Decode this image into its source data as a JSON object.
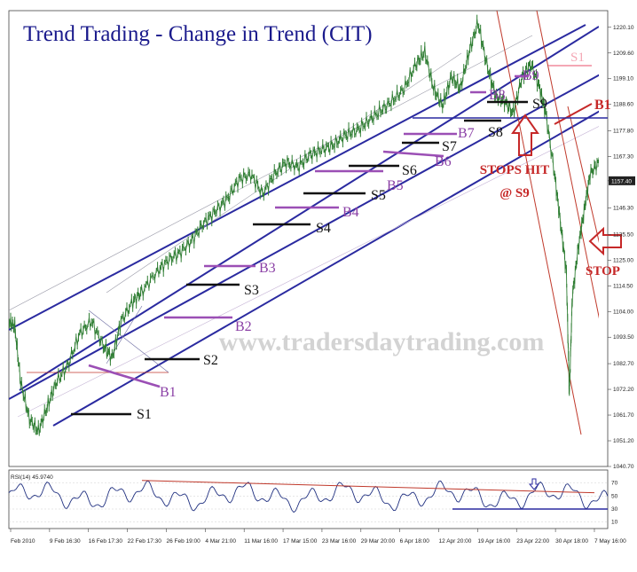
{
  "chart_data": {
    "type": "line",
    "title": "Trend Trading - Change in Trend (CIT)",
    "watermark": "www.tradersdaytrading.com",
    "y_ticks": [
      "1220.10",
      "1209.60",
      "1199.10",
      "1188.60",
      "1177.80",
      "1167.30",
      "1157.40",
      "1146.30",
      "1135.50",
      "1125.00",
      "1114.50",
      "1104.00",
      "1093.50",
      "1082.70",
      "1072.20",
      "1061.70",
      "1051.20",
      "1040.70"
    ],
    "current_price_label": "1157.40",
    "ylim": [
      1040.7,
      1224
    ],
    "x_ticks": [
      "Feb 2010",
      "9 Feb 16:30",
      "16 Feb 17:30",
      "22 Feb 17:30",
      "26 Feb 19:00",
      "4 Mar 21:00",
      "11 Mar 16:00",
      "17 Mar 15:00",
      "23 Mar 16:00",
      "29 Mar 20:00",
      "6 Apr 18:00",
      "12 Apr 20:00",
      "19 Apr 16:00",
      "23 Apr 22:00",
      "30 Apr 18:00",
      "7 May 16:00"
    ],
    "price_path": [
      [
        0,
        1100
      ],
      [
        0.01,
        1098
      ],
      [
        0.02,
        1075
      ],
      [
        0.035,
        1060
      ],
      [
        0.05,
        1055
      ],
      [
        0.065,
        1065
      ],
      [
        0.08,
        1075
      ],
      [
        0.1,
        1082
      ],
      [
        0.12,
        1095
      ],
      [
        0.14,
        1100
      ],
      [
        0.16,
        1090
      ],
      [
        0.175,
        1085
      ],
      [
        0.19,
        1100
      ],
      [
        0.21,
        1108
      ],
      [
        0.225,
        1112
      ],
      [
        0.25,
        1120
      ],
      [
        0.27,
        1125
      ],
      [
        0.29,
        1128
      ],
      [
        0.31,
        1133
      ],
      [
        0.33,
        1140
      ],
      [
        0.35,
        1145
      ],
      [
        0.37,
        1150
      ],
      [
        0.39,
        1158
      ],
      [
        0.41,
        1160
      ],
      [
        0.43,
        1152
      ],
      [
        0.45,
        1160
      ],
      [
        0.47,
        1165
      ],
      [
        0.49,
        1163
      ],
      [
        0.51,
        1168
      ],
      [
        0.53,
        1170
      ],
      [
        0.55,
        1172
      ],
      [
        0.57,
        1176
      ],
      [
        0.59,
        1178
      ],
      [
        0.61,
        1182
      ],
      [
        0.63,
        1186
      ],
      [
        0.65,
        1190
      ],
      [
        0.67,
        1195
      ],
      [
        0.69,
        1205
      ],
      [
        0.705,
        1210
      ],
      [
        0.72,
        1195
      ],
      [
        0.735,
        1188
      ],
      [
        0.75,
        1200
      ],
      [
        0.765,
        1195
      ],
      [
        0.78,
        1210
      ],
      [
        0.795,
        1222
      ],
      [
        0.81,
        1205
      ],
      [
        0.825,
        1192
      ],
      [
        0.84,
        1190
      ],
      [
        0.855,
        1185
      ],
      [
        0.87,
        1200
      ],
      [
        0.885,
        1205
      ],
      [
        0.9,
        1195
      ],
      [
        0.91,
        1185
      ],
      [
        0.925,
        1160
      ],
      [
        0.935,
        1140
      ],
      [
        0.945,
        1120
      ],
      [
        0.95,
        1070
      ],
      [
        0.955,
        1110
      ],
      [
        0.965,
        1130
      ],
      [
        0.975,
        1145
      ],
      [
        0.985,
        1160
      ],
      [
        1.0,
        1165
      ]
    ],
    "series": [
      {
        "name": "Buy levels",
        "values": [
          "B1",
          "B2",
          "B3",
          "B4",
          "B5",
          "B6",
          "B7",
          "B8",
          "B9",
          "B1"
        ]
      },
      {
        "name": "Stop levels",
        "values": [
          "S1",
          "S2",
          "S3",
          "S4",
          "S5",
          "S6",
          "S7",
          "S8",
          "S9",
          "S1"
        ]
      }
    ],
    "annotations": {
      "stops_hit_line1": "STOPS HIT",
      "stops_hit_line2": "@ S9",
      "stop_label": "STOP"
    },
    "rsi": {
      "label": "RSI(14) 45.9740",
      "ticks": [
        "70",
        "50",
        "30",
        "10"
      ],
      "ylim": [
        0,
        90
      ]
    },
    "grid": false
  },
  "colors": {
    "title": "#1a1a8c",
    "channel": "#2a2aa0",
    "buy": "#9b4fb5",
    "buy_text": "#8a3fa5",
    "stop": "#111111",
    "annotation": "#c62828",
    "price": "#2e7d32",
    "watermark": "#d3d3d3",
    "trend_red": "#c0392b",
    "light_pink": "#f4a7b5"
  }
}
